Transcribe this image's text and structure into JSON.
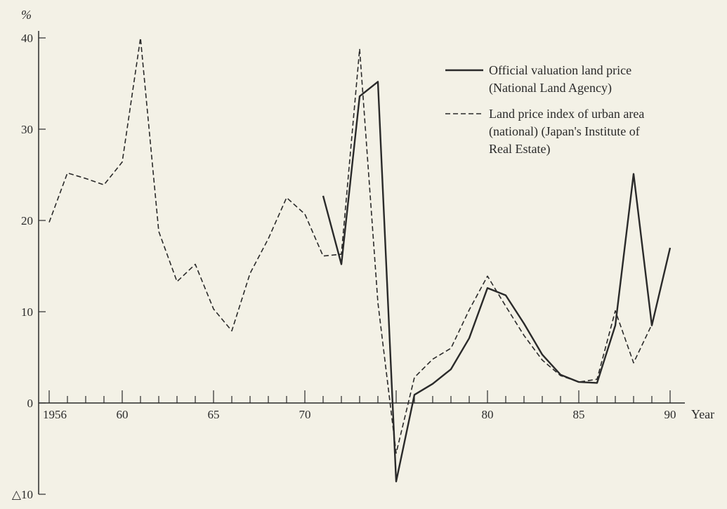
{
  "chart_data": {
    "type": "line",
    "title": "",
    "ylabel": "%",
    "xlabel": "Year",
    "xlim": [
      1956,
      1990
    ],
    "ylim": [
      -10,
      40
    ],
    "y_ticks": [
      {
        "value": 40,
        "label": "40"
      },
      {
        "value": 30,
        "label": "30"
      },
      {
        "value": 20,
        "label": "20"
      },
      {
        "value": 10,
        "label": "10"
      },
      {
        "value": 0,
        "label": "0"
      },
      {
        "value": -10,
        "label": "△10"
      }
    ],
    "x_tick_labels": [
      {
        "value": 1956,
        "label": "1956"
      },
      {
        "value": 1960,
        "label": "60"
      },
      {
        "value": 1965,
        "label": "65"
      },
      {
        "value": 1970,
        "label": "70"
      },
      {
        "value": 1980,
        "label": "80"
      },
      {
        "value": 1985,
        "label": "85"
      },
      {
        "value": 1990,
        "label": "90"
      }
    ],
    "grid": false,
    "legend_position": "top-right",
    "series": [
      {
        "name_lines": [
          "Official valuation land price",
          "(National Land Agency)"
        ],
        "style": "solid",
        "x": [
          1971,
          1972,
          1973,
          1974,
          1975,
          1976,
          1977,
          1978,
          1979,
          1980,
          1981,
          1982,
          1983,
          1984,
          1985,
          1986,
          1987,
          1988,
          1989,
          1990
        ],
        "values": [
          22.7,
          15.2,
          33.6,
          35.2,
          -8.6,
          0.9,
          2.1,
          3.7,
          7.1,
          12.6,
          11.8,
          8.7,
          5.3,
          3.1,
          2.3,
          2.2,
          8.5,
          25.1,
          8.5,
          17.0
        ]
      },
      {
        "name_lines": [
          "Land price index of urban area",
          "(national) (Japan's Institute of",
          "Real Estate)"
        ],
        "style": "dashed",
        "x": [
          1956,
          1957,
          1958,
          1959,
          1960,
          1961,
          1962,
          1963,
          1964,
          1965,
          1966,
          1967,
          1968,
          1969,
          1970,
          1971,
          1972,
          1973,
          1974,
          1975,
          1976,
          1977,
          1978,
          1979,
          1980,
          1981,
          1982,
          1983,
          1984,
          1985,
          1986,
          1987,
          1988,
          1989
        ],
        "values": [
          19.8,
          25.2,
          24.6,
          23.9,
          26.4,
          40.0,
          18.8,
          13.3,
          15.2,
          10.3,
          7.9,
          14.2,
          18.0,
          22.5,
          20.7,
          16.1,
          16.3,
          38.8,
          11.0,
          -5.5,
          2.8,
          4.8,
          6.0,
          10.2,
          13.9,
          10.6,
          7.4,
          4.7,
          3.0,
          2.3,
          2.6,
          10.1,
          4.4,
          8.6
        ]
      }
    ]
  }
}
